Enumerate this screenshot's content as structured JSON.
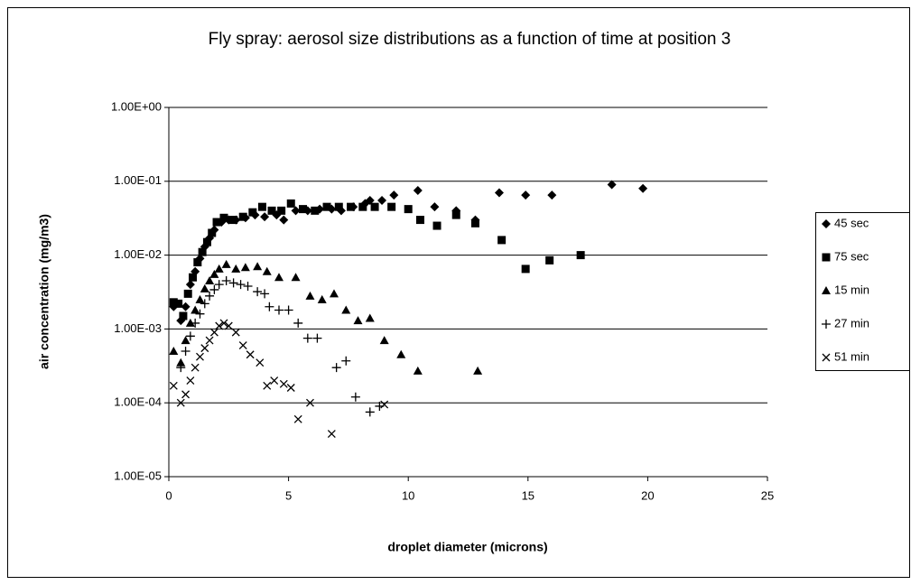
{
  "chart_data": {
    "type": "scatter",
    "title": "Fly spray: aerosol size distributions as a function of time at position 3",
    "x_label": "droplet diameter (microns)",
    "y_label": "air concentration (mg/m3)",
    "xlim": [
      0,
      25
    ],
    "xticks": [
      0,
      5,
      10,
      15,
      20,
      25
    ],
    "ylim": [
      1e-05,
      1
    ],
    "y_scale": "log",
    "yticks": [
      {
        "value": 1e-05,
        "label": "1.00E-05"
      },
      {
        "value": 0.0001,
        "label": "1.00E-04"
      },
      {
        "value": 0.001,
        "label": "1.00E-03"
      },
      {
        "value": 0.01,
        "label": "1.00E-02"
      },
      {
        "value": 0.1,
        "label": "1.00E-01"
      },
      {
        "value": 1,
        "label": "1.00E+00"
      }
    ],
    "grid": true,
    "legend": "right",
    "series": [
      {
        "name": "45 sec",
        "color": "#000000",
        "marker": "diamond",
        "x": [
          0.2,
          0.5,
          0.7,
          0.9,
          1.1,
          1.3,
          1.5,
          1.7,
          1.9,
          2.2,
          2.5,
          2.8,
          3.2,
          3.6,
          4.0,
          4.5,
          4.8,
          5.3,
          5.8,
          6.3,
          6.8,
          7.2,
          7.7,
          8.2,
          8.4,
          8.9,
          9.4,
          10.4,
          11.1,
          12.0,
          12.8,
          13.8,
          14.9,
          16.0,
          18.5,
          19.8
        ],
        "values": [
          0.002,
          0.0013,
          0.002,
          0.004,
          0.006,
          0.009,
          0.013,
          0.017,
          0.022,
          0.028,
          0.03,
          0.03,
          0.032,
          0.035,
          0.033,
          0.035,
          0.03,
          0.04,
          0.04,
          0.042,
          0.042,
          0.04,
          0.045,
          0.05,
          0.055,
          0.055,
          0.065,
          0.075,
          0.045,
          0.04,
          0.03,
          0.07,
          0.065,
          0.065,
          0.09,
          0.08
        ]
      },
      {
        "name": "75 sec",
        "color": "#000000",
        "marker": "square",
        "x": [
          0.2,
          0.4,
          0.6,
          0.8,
          1.0,
          1.2,
          1.4,
          1.6,
          1.8,
          2.0,
          2.3,
          2.7,
          3.1,
          3.5,
          3.9,
          4.3,
          4.7,
          5.1,
          5.6,
          6.1,
          6.6,
          7.1,
          7.6,
          8.1,
          8.6,
          9.3,
          10.0,
          10.5,
          11.2,
          12.0,
          12.8,
          13.9,
          14.9,
          15.9,
          17.2
        ],
        "values": [
          0.0023,
          0.0022,
          0.0015,
          0.003,
          0.005,
          0.008,
          0.011,
          0.015,
          0.02,
          0.028,
          0.032,
          0.03,
          0.033,
          0.038,
          0.045,
          0.04,
          0.04,
          0.05,
          0.042,
          0.04,
          0.045,
          0.045,
          0.045,
          0.045,
          0.045,
          0.045,
          0.042,
          0.03,
          0.025,
          0.035,
          0.027,
          0.016,
          0.0065,
          0.0085,
          0.01
        ]
      },
      {
        "name": "15 min",
        "color": "#000000",
        "marker": "triangle",
        "x": [
          0.2,
          0.5,
          0.7,
          0.9,
          1.1,
          1.3,
          1.5,
          1.7,
          1.9,
          2.1,
          2.4,
          2.8,
          3.2,
          3.7,
          4.1,
          4.6,
          5.3,
          5.9,
          6.4,
          6.9,
          7.4,
          7.9,
          8.4,
          9.0,
          9.7,
          10.4,
          12.9
        ],
        "values": [
          0.0005,
          0.00035,
          0.0007,
          0.0012,
          0.0018,
          0.0025,
          0.0035,
          0.0045,
          0.0055,
          0.0065,
          0.0075,
          0.0065,
          0.0068,
          0.007,
          0.006,
          0.005,
          0.005,
          0.0028,
          0.0025,
          0.003,
          0.0018,
          0.0013,
          0.0014,
          0.0007,
          0.00045,
          0.00027,
          0.00027
        ]
      },
      {
        "name": "27 min",
        "color": "#000000",
        "marker": "plus",
        "x": [
          0.5,
          0.7,
          0.9,
          1.1,
          1.3,
          1.5,
          1.7,
          1.9,
          2.1,
          2.4,
          2.7,
          3.0,
          3.3,
          3.7,
          4.0,
          4.2,
          4.6,
          5.0,
          5.4,
          5.8,
          6.2,
          7.0,
          7.4,
          7.8,
          8.4,
          8.8
        ],
        "values": [
          0.0003,
          0.0005,
          0.0008,
          0.0012,
          0.0016,
          0.0022,
          0.0028,
          0.0034,
          0.004,
          0.0045,
          0.0042,
          0.004,
          0.0038,
          0.0032,
          0.003,
          0.002,
          0.0018,
          0.0018,
          0.0012,
          0.00075,
          0.00075,
          0.0003,
          0.00037,
          0.00012,
          7.5e-05,
          9e-05
        ]
      },
      {
        "name": "51 min",
        "color": "#000000",
        "marker": "cross",
        "x": [
          0.2,
          0.5,
          0.7,
          0.9,
          1.1,
          1.3,
          1.5,
          1.7,
          1.9,
          2.1,
          2.3,
          2.5,
          2.8,
          3.1,
          3.4,
          3.8,
          4.1,
          4.4,
          4.8,
          5.1,
          5.4,
          5.9,
          6.8,
          9.0
        ],
        "values": [
          0.00017,
          0.0001,
          0.00013,
          0.0002,
          0.0003,
          0.00042,
          0.00055,
          0.0007,
          0.0009,
          0.0011,
          0.0012,
          0.0011,
          0.0009,
          0.0006,
          0.00045,
          0.00035,
          0.00017,
          0.0002,
          0.00018,
          0.00016,
          6e-05,
          0.0001,
          3.8e-05,
          9.5e-05
        ]
      }
    ]
  }
}
